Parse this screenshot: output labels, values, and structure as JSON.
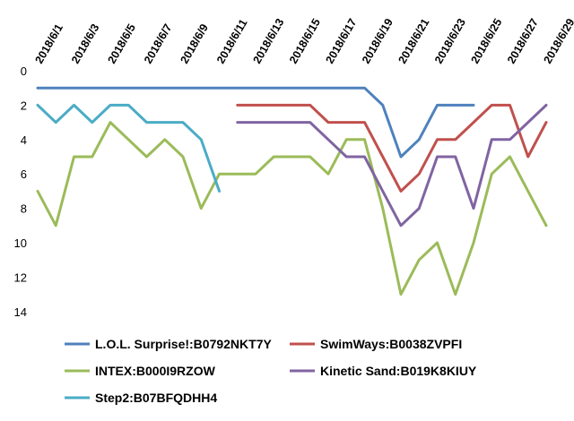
{
  "chart_data": {
    "type": "line",
    "y_axis": {
      "reversed": true,
      "min": 0,
      "max": 14,
      "step": 2,
      "grid": false
    },
    "x_axis": {
      "position": "top",
      "label_rotation": -60
    },
    "x": [
      "2018/6/1",
      "2018/6/2",
      "2018/6/3",
      "2018/6/4",
      "2018/6/5",
      "2018/6/6",
      "2018/6/7",
      "2018/6/8",
      "2018/6/9",
      "2018/6/10",
      "2018/6/11",
      "2018/6/12",
      "2018/6/13",
      "2018/6/14",
      "2018/6/15",
      "2018/6/16",
      "2018/6/17",
      "2018/6/18",
      "2018/6/19",
      "2018/6/20",
      "2018/6/21",
      "2018/6/22",
      "2018/6/23",
      "2018/6/24",
      "2018/6/25",
      "2018/6/26",
      "2018/6/27",
      "2018/6/28",
      "2018/6/29"
    ],
    "x_tick_labels": [
      "2018/6/1",
      "2018/6/3",
      "2018/6/5",
      "2018/6/7",
      "2018/6/9",
      "2018/6/11",
      "2018/6/13",
      "2018/6/15",
      "2018/6/17",
      "2018/6/19",
      "2018/6/21",
      "2018/6/23",
      "2018/6/25",
      "2018/6/27",
      "2018/6/29"
    ],
    "y_tick_labels": [
      "0",
      "2",
      "4",
      "6",
      "8",
      "10",
      "12",
      "14"
    ],
    "legend_placement": "bottom",
    "series": [
      {
        "name": "L.O.L. Surprise!:B0792NKT7Y",
        "color": "#4F81BD",
        "values": [
          1,
          1,
          1,
          1,
          1,
          1,
          1,
          1,
          1,
          1,
          1,
          1,
          1,
          1,
          1,
          1,
          1,
          1,
          1,
          2,
          5,
          4,
          2,
          2,
          2,
          null,
          null,
          null,
          null
        ]
      },
      {
        "name": "SwimWays:B0038ZVPFI",
        "color": "#C0504D",
        "values": [
          null,
          null,
          null,
          null,
          null,
          null,
          null,
          null,
          null,
          null,
          null,
          2,
          2,
          2,
          2,
          2,
          3,
          3,
          3,
          5,
          7,
          6,
          4,
          4,
          3,
          2,
          2,
          5,
          3
        ]
      },
      {
        "name": "INTEX:B000I9RZOW",
        "color": "#9BBB59",
        "values": [
          7,
          9,
          5,
          5,
          3,
          4,
          5,
          4,
          5,
          8,
          6,
          6,
          6,
          5,
          5,
          5,
          6,
          4,
          4,
          8,
          13,
          11,
          10,
          13,
          10,
          6,
          5,
          7,
          9
        ]
      },
      {
        "name": "Kinetic Sand:B019K8KIUY",
        "color": "#8064A2",
        "values": [
          null,
          null,
          null,
          null,
          null,
          null,
          null,
          null,
          null,
          null,
          null,
          3,
          3,
          3,
          3,
          3,
          4,
          5,
          5,
          7,
          9,
          8,
          5,
          5,
          8,
          4,
          4,
          3,
          2
        ]
      },
      {
        "name": "Step2:B07BFQDHH4",
        "color": "#4BACC6",
        "values": [
          2,
          3,
          2,
          3,
          2,
          2,
          3,
          3,
          3,
          4,
          7,
          null,
          null,
          null,
          null,
          null,
          null,
          null,
          null,
          null,
          null,
          null,
          null,
          null,
          null,
          null,
          null,
          null,
          null
        ]
      }
    ]
  }
}
